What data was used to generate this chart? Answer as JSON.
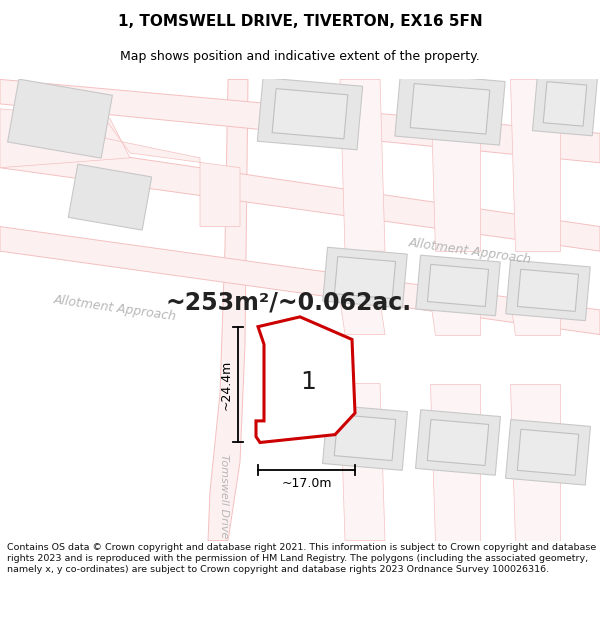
{
  "title": "1, TOMSWELL DRIVE, TIVERTON, EX16 5FN",
  "subtitle": "Map shows position and indicative extent of the property.",
  "area_text": "~253m²/~0.062ac.",
  "label_1": "1",
  "dim_height": "~24.4m",
  "dim_width": "~17.0m",
  "footer": "Contains OS data © Crown copyright and database right 2021. This information is subject to Crown copyright and database rights 2023 and is reproduced with the permission of HM Land Registry. The polygons (including the associated geometry, namely x, y co-ordinates) are subject to Crown copyright and database rights 2023 Ordnance Survey 100026316.",
  "bg_color": "#ffffff",
  "road_line_color": "#f5c0c0",
  "road_fill_color": "#fdf0f0",
  "building_fill": "#e6e6e6",
  "building_edge": "#c8c8c8",
  "plot_fill": "#ffffff",
  "plot_edge": "#cc0000",
  "inner_fill": "#e0e0e0",
  "inner_edge": "#c0c0c0",
  "street_color": "#b0b0b0",
  "title_fontsize": 11,
  "subtitle_fontsize": 9,
  "area_fontsize": 17,
  "label_fontsize": 18,
  "dim_fontsize": 9,
  "footer_fontsize": 6.8
}
